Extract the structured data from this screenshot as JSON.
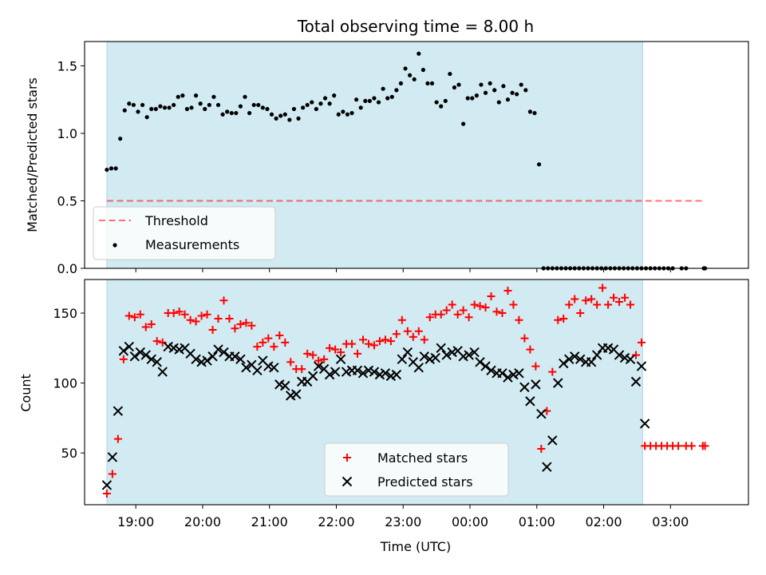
{
  "figure": {
    "title": "Total observing time = 8.00 h"
  },
  "colors": {
    "span": "#add8e6",
    "threshold": "#ff0000",
    "measurement": "#000000",
    "matched": "#ff0000",
    "predicted": "#000000"
  },
  "chart_data": [
    {
      "type": "scatter",
      "panel": "top",
      "title": "Total observing time = 8.00 h",
      "ylabel": "Matched/Predicted stars",
      "xlabel": "",
      "ylim": [
        0,
        1.68
      ],
      "yticks": [
        0.0,
        0.5,
        1.0,
        1.5
      ],
      "ytick_labels": [
        "0.0",
        "0.5",
        "1.0",
        "1.5"
      ],
      "grid": false,
      "legend_position": "lower-left",
      "shaded_span": {
        "start": "18:34",
        "end": "02:35"
      },
      "threshold": {
        "name": "Threshold",
        "value": 0.5,
        "start": "18:34",
        "end": "03:31",
        "style": "dashed"
      },
      "series": [
        {
          "name": "Measurements",
          "marker": "dot",
          "x": [
            "18:34",
            "18:38",
            "18:42",
            "18:46",
            "18:50",
            "18:54",
            "18:58",
            "19:02",
            "19:06",
            "19:10",
            "19:14",
            "19:18",
            "19:22",
            "19:26",
            "19:30",
            "19:34",
            "19:38",
            "19:42",
            "19:46",
            "19:50",
            "19:54",
            "19:58",
            "20:02",
            "20:06",
            "20:10",
            "20:14",
            "20:18",
            "20:22",
            "20:26",
            "20:30",
            "20:34",
            "20:38",
            "20:42",
            "20:46",
            "20:50",
            "20:54",
            "20:58",
            "21:02",
            "21:06",
            "21:10",
            "21:14",
            "21:18",
            "21:22",
            "21:26",
            "21:30",
            "21:34",
            "21:38",
            "21:42",
            "21:46",
            "21:50",
            "21:54",
            "21:58",
            "22:02",
            "22:06",
            "22:10",
            "22:14",
            "22:18",
            "22:22",
            "22:26",
            "22:30",
            "22:34",
            "22:38",
            "22:42",
            "22:46",
            "22:50",
            "22:54",
            "22:58",
            "23:02",
            "23:06",
            "23:10",
            "23:14",
            "23:18",
            "23:22",
            "23:26",
            "23:30",
            "23:34",
            "23:38",
            "23:42",
            "23:46",
            "23:50",
            "23:54",
            "23:58",
            "00:02",
            "00:06",
            "00:10",
            "00:14",
            "00:18",
            "00:22",
            "00:26",
            "00:30",
            "00:34",
            "00:38",
            "00:42",
            "00:46",
            "00:50",
            "00:54",
            "00:58",
            "01:02",
            "01:06",
            "01:10",
            "01:14",
            "01:18",
            "01:22",
            "01:26",
            "01:30",
            "01:34",
            "01:38",
            "01:42",
            "01:46",
            "01:50",
            "01:54",
            "01:58",
            "02:02",
            "02:06",
            "02:10",
            "02:14",
            "02:18",
            "02:22",
            "02:26",
            "02:30",
            "02:34",
            "02:38",
            "02:42",
            "02:46",
            "02:50",
            "02:54",
            "02:58",
            "03:02",
            "03:10",
            "03:14",
            "03:30",
            "03:31"
          ],
          "y": [
            0.73,
            0.74,
            0.74,
            0.96,
            1.17,
            1.22,
            1.21,
            1.16,
            1.21,
            1.12,
            1.18,
            1.18,
            1.2,
            1.19,
            1.19,
            1.21,
            1.27,
            1.28,
            1.18,
            1.19,
            1.28,
            1.22,
            1.18,
            1.21,
            1.27,
            1.21,
            1.14,
            1.16,
            1.15,
            1.15,
            1.2,
            1.27,
            1.15,
            1.21,
            1.21,
            1.19,
            1.18,
            1.14,
            1.11,
            1.13,
            1.14,
            1.1,
            1.18,
            1.11,
            1.19,
            1.21,
            1.23,
            1.18,
            1.22,
            1.26,
            1.22,
            1.28,
            1.14,
            1.16,
            1.14,
            1.15,
            1.25,
            1.19,
            1.24,
            1.24,
            1.26,
            1.23,
            1.33,
            1.26,
            1.27,
            1.32,
            1.37,
            1.48,
            1.43,
            1.4,
            1.59,
            1.47,
            1.37,
            1.37,
            1.23,
            1.2,
            1.24,
            1.44,
            1.34,
            1.36,
            1.07,
            1.26,
            1.26,
            1.28,
            1.36,
            1.3,
            1.37,
            1.32,
            1.23,
            1.35,
            1.25,
            1.3,
            1.29,
            1.36,
            1.32,
            1.16,
            1.15,
            0.77,
            0.0,
            0.0,
            0.0,
            0.0,
            0.0,
            0.0,
            0.0,
            0.0,
            0.0,
            0.0,
            0.0,
            0.0,
            0.0,
            0.0,
            0.0,
            0.0,
            0.0,
            0.0,
            0.0,
            0.0,
            0.0,
            0.0,
            0.0,
            0.0,
            0.0,
            0.0,
            0.0,
            0.0,
            0.0,
            0.0,
            0.0,
            0.0,
            0.0,
            0.0
          ]
        }
      ]
    },
    {
      "type": "scatter",
      "panel": "bottom",
      "title": "",
      "ylabel": "Count",
      "xlabel": "Time (UTC)",
      "ylim": [
        13,
        174
      ],
      "yticks": [
        50,
        100,
        150
      ],
      "ytick_labels": [
        "50",
        "100",
        "150"
      ],
      "xlim": [
        "18:14",
        "04:10"
      ],
      "xticks": [
        "19:00",
        "20:00",
        "21:00",
        "22:00",
        "23:00",
        "00:00",
        "01:00",
        "02:00",
        "03:00"
      ],
      "xtick_labels": [
        "19:00",
        "20:00",
        "21:00",
        "22:00",
        "23:00",
        "00:00",
        "01:00",
        "02:00",
        "03:00"
      ],
      "grid": false,
      "legend_position": "lower-center",
      "shaded_span": {
        "start": "18:34",
        "end": "02:35"
      },
      "series": [
        {
          "name": "Matched stars",
          "marker": "plus",
          "x": [
            "18:34",
            "18:39",
            "18:44",
            "18:49",
            "18:54",
            "18:59",
            "19:04",
            "19:09",
            "19:14",
            "19:19",
            "19:24",
            "19:29",
            "19:34",
            "19:39",
            "19:44",
            "19:49",
            "19:54",
            "19:59",
            "20:04",
            "20:09",
            "20:14",
            "20:19",
            "20:24",
            "20:29",
            "20:34",
            "20:39",
            "20:44",
            "20:49",
            "20:54",
            "20:59",
            "21:04",
            "21:09",
            "21:14",
            "21:19",
            "21:24",
            "21:29",
            "21:34",
            "21:39",
            "21:44",
            "21:49",
            "21:54",
            "21:59",
            "22:04",
            "22:09",
            "22:14",
            "22:19",
            "22:24",
            "22:29",
            "22:34",
            "22:39",
            "22:44",
            "22:49",
            "22:54",
            "22:59",
            "23:04",
            "23:09",
            "23:14",
            "23:19",
            "23:24",
            "23:29",
            "23:34",
            "23:39",
            "23:44",
            "23:49",
            "23:54",
            "23:59",
            "00:04",
            "00:09",
            "00:14",
            "00:19",
            "00:24",
            "00:29",
            "00:34",
            "00:39",
            "00:44",
            "00:49",
            "00:54",
            "00:59",
            "01:04",
            "01:09",
            "01:14",
            "01:19",
            "01:24",
            "01:29",
            "01:34",
            "01:39",
            "01:44",
            "01:49",
            "01:54",
            "01:59",
            "02:04",
            "02:09",
            "02:14",
            "02:19",
            "02:24",
            "02:29",
            "02:34",
            "02:37",
            "02:42",
            "02:47",
            "02:52",
            "02:57",
            "03:02",
            "03:07",
            "03:14",
            "03:19",
            "03:29",
            "03:31"
          ],
          "y": [
            21,
            35,
            60,
            117,
            148,
            147,
            149,
            140,
            142,
            130,
            129,
            150,
            150,
            151,
            149,
            145,
            144,
            148,
            149,
            138,
            146,
            159,
            146,
            139,
            142,
            143,
            141,
            126,
            129,
            132,
            126,
            134,
            129,
            115,
            110,
            110,
            121,
            120,
            116,
            117,
            125,
            124,
            122,
            128,
            128,
            121,
            131,
            128,
            127,
            130,
            131,
            130,
            135,
            145,
            137,
            133,
            137,
            131,
            147,
            149,
            149,
            152,
            156,
            149,
            152,
            147,
            156,
            155,
            154,
            162,
            151,
            150,
            166,
            156,
            145,
            132,
            124,
            112,
            53,
            80,
            108,
            145,
            146,
            156,
            160,
            150,
            159,
            160,
            156,
            168,
            156,
            161,
            158,
            161,
            156,
            120,
            129,
            55,
            55,
            55,
            55,
            55,
            55,
            55,
            55,
            55,
            55,
            55
          ]
        },
        {
          "name": "Predicted stars",
          "marker": "x",
          "x": [
            "18:34",
            "18:39",
            "18:44",
            "18:49",
            "18:54",
            "18:59",
            "19:04",
            "19:09",
            "19:14",
            "19:19",
            "19:24",
            "19:29",
            "19:34",
            "19:39",
            "19:44",
            "19:49",
            "19:54",
            "19:59",
            "20:04",
            "20:09",
            "20:14",
            "20:19",
            "20:24",
            "20:29",
            "20:34",
            "20:39",
            "20:44",
            "20:49",
            "20:54",
            "20:59",
            "21:04",
            "21:09",
            "21:14",
            "21:19",
            "21:24",
            "21:29",
            "21:34",
            "21:39",
            "21:44",
            "21:49",
            "21:54",
            "21:59",
            "22:04",
            "22:09",
            "22:14",
            "22:19",
            "22:24",
            "22:29",
            "22:34",
            "22:39",
            "22:44",
            "22:49",
            "22:54",
            "22:59",
            "23:04",
            "23:09",
            "23:14",
            "23:19",
            "23:24",
            "23:29",
            "23:34",
            "23:39",
            "23:44",
            "23:49",
            "23:54",
            "23:59",
            "00:04",
            "00:09",
            "00:14",
            "00:19",
            "00:24",
            "00:29",
            "00:34",
            "00:39",
            "00:44",
            "00:49",
            "00:54",
            "00:59",
            "01:04",
            "01:09",
            "01:14",
            "01:19",
            "01:24",
            "01:29",
            "01:34",
            "01:39",
            "01:44",
            "01:49",
            "01:54",
            "01:59",
            "02:04",
            "02:09",
            "02:14",
            "02:19",
            "02:24",
            "02:29",
            "02:34",
            "02:37"
          ],
          "y": [
            27,
            47,
            80,
            123,
            126,
            119,
            122,
            120,
            117,
            115,
            108,
            126,
            125,
            124,
            125,
            121,
            117,
            115,
            116,
            119,
            124,
            122,
            119,
            119,
            117,
            111,
            113,
            109,
            116,
            112,
            111,
            99,
            98,
            91,
            92,
            101,
            101,
            105,
            112,
            110,
            106,
            108,
            117,
            108,
            109,
            109,
            107,
            109,
            108,
            106,
            107,
            105,
            106,
            117,
            122,
            115,
            111,
            119,
            117,
            118,
            125,
            120,
            122,
            123,
            119,
            120,
            122,
            115,
            112,
            109,
            107,
            107,
            104,
            106,
            107,
            97,
            87,
            99,
            78,
            40,
            59,
            100,
            114,
            117,
            119,
            117,
            115,
            115,
            120,
            125,
            125,
            124,
            120,
            118,
            117,
            101,
            112,
            71
          ]
        }
      ]
    }
  ]
}
